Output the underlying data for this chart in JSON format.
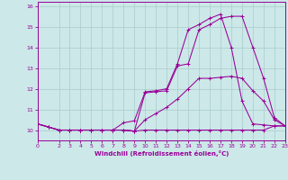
{
  "xlabel": "Windchill (Refroidissement éolien,°C)",
  "bg_color": "#cce8e8",
  "grid_color": "#aacccc",
  "line_color": "#990099",
  "xlim": [
    0,
    23
  ],
  "ylim": [
    9.5,
    16.2
  ],
  "yticks": [
    10,
    11,
    12,
    13,
    14,
    15,
    16
  ],
  "xticks": [
    0,
    2,
    3,
    4,
    5,
    6,
    7,
    8,
    9,
    10,
    11,
    12,
    13,
    14,
    15,
    16,
    17,
    18,
    19,
    20,
    21,
    22,
    23
  ],
  "series": [
    {
      "x": [
        0,
        1,
        2,
        3,
        4,
        5,
        6,
        7,
        8,
        9,
        10,
        11,
        12,
        13,
        14,
        15,
        16,
        17,
        18,
        19,
        20,
        21,
        22,
        23
      ],
      "y": [
        10.3,
        10.15,
        10.0,
        10.0,
        10.0,
        10.0,
        10.0,
        10.0,
        10.0,
        9.95,
        10.0,
        10.0,
        10.0,
        10.0,
        10.0,
        10.0,
        10.0,
        10.0,
        10.0,
        10.0,
        10.0,
        10.0,
        10.2,
        10.2
      ]
    },
    {
      "x": [
        0,
        1,
        2,
        3,
        4,
        5,
        6,
        7,
        8,
        9,
        10,
        11,
        12,
        13,
        14,
        15,
        16,
        17,
        18,
        19,
        20,
        21,
        22,
        23
      ],
      "y": [
        10.3,
        10.15,
        10.0,
        10.0,
        10.0,
        10.0,
        10.0,
        10.0,
        10.0,
        9.95,
        10.5,
        10.8,
        11.1,
        11.5,
        12.0,
        12.5,
        12.5,
        12.55,
        12.6,
        12.5,
        11.9,
        11.4,
        10.5,
        10.2
      ]
    },
    {
      "x": [
        0,
        1,
        2,
        3,
        4,
        5,
        6,
        7,
        8,
        9,
        10,
        11,
        12,
        13,
        14,
        15,
        16,
        17,
        18,
        19,
        20,
        21,
        22,
        23
      ],
      "y": [
        10.3,
        10.15,
        10.0,
        10.0,
        10.0,
        10.0,
        10.0,
        10.0,
        10.0,
        9.95,
        11.8,
        11.85,
        11.9,
        13.1,
        13.2,
        14.85,
        15.1,
        15.4,
        15.5,
        15.5,
        14.0,
        12.5,
        10.6,
        10.2
      ]
    },
    {
      "x": [
        0,
        1,
        2,
        3,
        4,
        5,
        6,
        7,
        8,
        9,
        10,
        11,
        12,
        13,
        14,
        15,
        16,
        17,
        18,
        19,
        20,
        21,
        22,
        23
      ],
      "y": [
        10.3,
        10.15,
        10.0,
        10.0,
        10.0,
        10.0,
        10.0,
        10.0,
        10.35,
        10.45,
        11.85,
        11.9,
        12.0,
        13.2,
        14.85,
        15.1,
        15.4,
        15.6,
        14.0,
        11.4,
        10.3,
        10.25,
        10.2,
        10.2
      ]
    }
  ]
}
